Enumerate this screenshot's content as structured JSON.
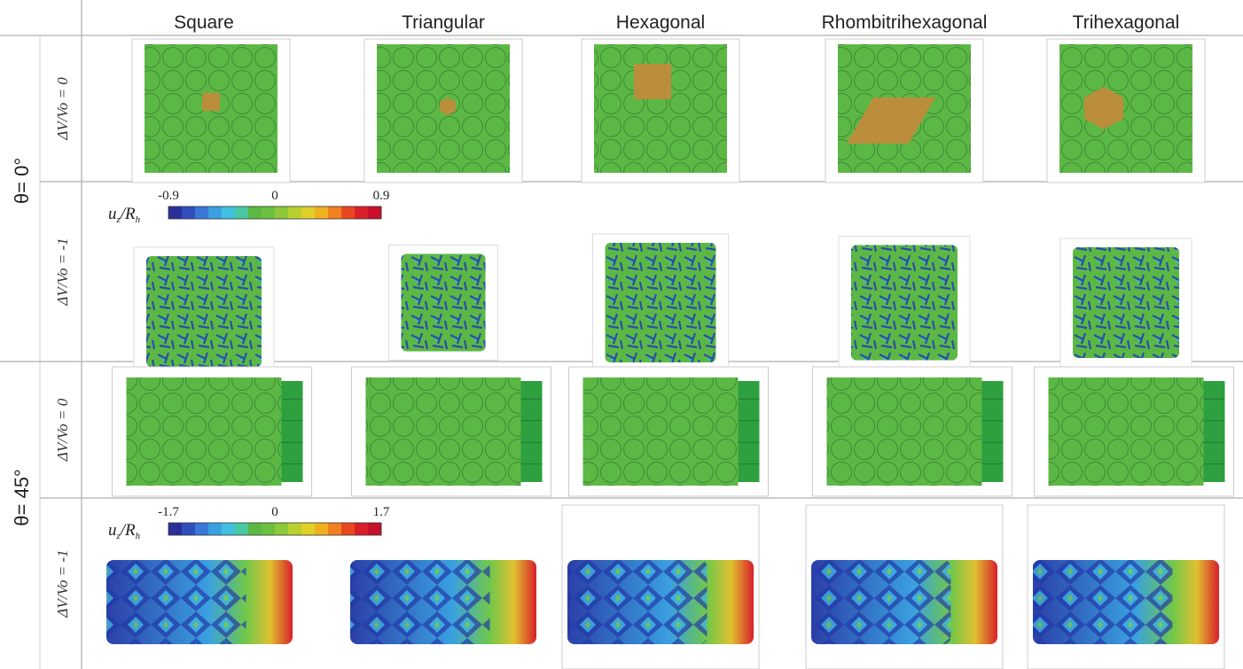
{
  "columns": [
    "Square",
    "Triangular",
    "Hexagonal",
    "Rhombitrihexagonal",
    "Trihexagonal"
  ],
  "row_groups": [
    {
      "label": "θ= 0°",
      "rows": [
        {
          "label": "ΔV/Vo = 0"
        },
        {
          "label": "ΔV/Vo = -1",
          "colorbar": {
            "ticks": [
              "-0.9",
              "0",
              "0.9"
            ],
            "label": [
              "u",
              "z",
              "/R",
              "h"
            ]
          }
        }
      ]
    },
    {
      "label": "θ= 45°",
      "rows": [
        {
          "label": "ΔV/Vo = 0"
        },
        {
          "label": "ΔV/Vo = -1",
          "colorbar": {
            "ticks": [
              "-1.7",
              "0",
              "1.7"
            ],
            "label": [
              "u",
              "z",
              "/R",
              "h"
            ]
          }
        }
      ]
    }
  ]
}
